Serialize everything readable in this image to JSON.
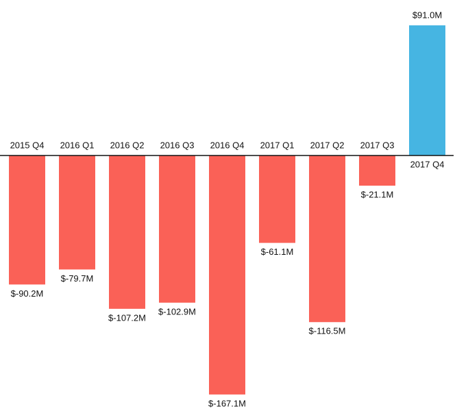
{
  "chart_data": {
    "type": "bar",
    "categories": [
      "2015 Q4",
      "2016 Q1",
      "2016 Q2",
      "2016 Q3",
      "2016 Q4",
      "2017 Q1",
      "2017 Q2",
      "2017 Q3",
      "2017 Q4"
    ],
    "values": [
      -90.2,
      -79.7,
      -107.2,
      -102.9,
      -167.1,
      -61.1,
      -116.5,
      -21.1,
      91.0
    ],
    "value_labels": [
      "$-90.2M",
      "$-79.7M",
      "$-107.2M",
      "$-102.9M",
      "$-167.1M",
      "$-61.1M",
      "$-116.5M",
      "$-21.1M",
      "$91.0M"
    ],
    "negative_color": "#fa6157",
    "positive_color": "#46b5e2"
  }
}
